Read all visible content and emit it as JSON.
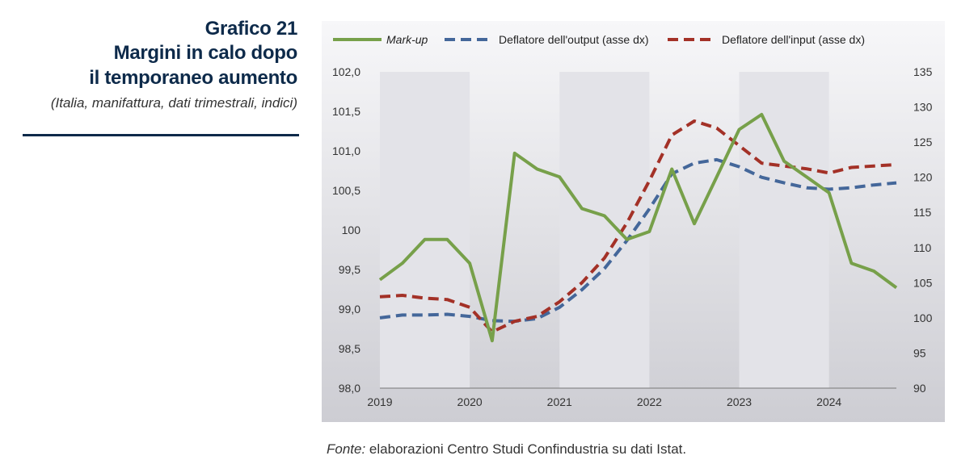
{
  "header": {
    "title_line1": "Grafico 21",
    "title_line2": "Margini in calo dopo",
    "title_line3": "il temporaneo aumento",
    "subtitle": "(Italia, manifattura, dati trimestrali, indici)"
  },
  "source": {
    "prefix": "Fonte:",
    "text": " elaborazioni Centro Studi Confindustria su dati Istat."
  },
  "colors": {
    "markup": "#77a04a",
    "output": "#44679a",
    "input": "#a33127",
    "shade": "#e3e3e8",
    "background_top": "#f7f7f9",
    "background_bottom": "#cdcdd3"
  },
  "chart_data": {
    "type": "line",
    "x_ticks": [
      "2019",
      "2020",
      "2021",
      "2022",
      "2023",
      "2024"
    ],
    "xlim": [
      2019,
      2024.75
    ],
    "shaded_years": [
      "2019",
      "2021",
      "2023"
    ],
    "y_left": {
      "ylim": [
        98.0,
        102.0
      ],
      "ticks": [
        "98,0",
        "98,5",
        "99,0",
        "99,5",
        "100",
        "100,5",
        "101,0",
        "101,5",
        "102,0"
      ],
      "tick_values": [
        98.0,
        98.5,
        99.0,
        99.5,
        100.0,
        100.5,
        101.0,
        101.5,
        102.0
      ]
    },
    "y_right": {
      "ylim": [
        90,
        135
      ],
      "ticks": [
        "90",
        "95",
        "100",
        "105",
        "110",
        "115",
        "120",
        "125",
        "130",
        "135"
      ],
      "tick_values": [
        90,
        95,
        100,
        105,
        110,
        115,
        120,
        125,
        130,
        135
      ]
    },
    "legend_position": "top",
    "series": [
      {
        "name": "Mark-up",
        "axis": "left",
        "style": "solid",
        "x": [
          2019.0,
          2019.25,
          2019.5,
          2019.75,
          2020.0,
          2020.25,
          2020.5,
          2020.75,
          2021.0,
          2021.25,
          2021.5,
          2021.75,
          2022.0,
          2022.25,
          2022.5,
          2022.75,
          2023.0,
          2023.25,
          2023.5,
          2023.75,
          2024.0,
          2024.25,
          2024.5,
          2024.75
        ],
        "values": [
          99.37,
          99.58,
          99.88,
          99.88,
          99.58,
          98.6,
          100.97,
          100.77,
          100.67,
          100.27,
          100.18,
          99.88,
          99.98,
          100.77,
          100.08,
          100.67,
          101.27,
          101.46,
          100.87,
          100.67,
          100.47,
          99.58,
          99.48,
          99.27
        ]
      },
      {
        "name": "Deflatore dell'output (asse dx)",
        "axis": "right",
        "style": "dashed",
        "x": [
          2019.0,
          2019.25,
          2019.5,
          2019.75,
          2020.0,
          2020.25,
          2020.5,
          2020.75,
          2021.0,
          2021.25,
          2021.5,
          2021.75,
          2022.0,
          2022.25,
          2022.5,
          2022.75,
          2023.0,
          2023.25,
          2023.5,
          2023.75,
          2024.0,
          2024.25,
          2024.5,
          2024.75
        ],
        "values": [
          100.0,
          100.4,
          100.4,
          100.5,
          100.2,
          99.6,
          99.5,
          99.9,
          101.5,
          104.0,
          107.0,
          111.0,
          115.5,
          120.5,
          122.0,
          122.5,
          121.5,
          120.0,
          119.2,
          118.5,
          118.3,
          118.5,
          118.9,
          119.2
        ]
      },
      {
        "name": "Deflatore dell'input (asse dx)",
        "axis": "right",
        "style": "dashed",
        "x": [
          2019.0,
          2019.25,
          2019.5,
          2019.75,
          2020.0,
          2020.25,
          2020.5,
          2020.75,
          2021.0,
          2021.25,
          2021.5,
          2021.75,
          2022.0,
          2022.25,
          2022.5,
          2022.75,
          2023.0,
          2023.25,
          2023.5,
          2023.75,
          2024.0,
          2024.25,
          2024.5,
          2024.75
        ],
        "values": [
          103.0,
          103.2,
          102.8,
          102.6,
          101.5,
          98.0,
          99.5,
          100.2,
          102.3,
          105.0,
          108.5,
          113.5,
          119.5,
          126.0,
          128.0,
          127.0,
          124.5,
          122.0,
          121.6,
          121.2,
          120.6,
          121.4,
          121.6,
          121.8
        ]
      }
    ]
  }
}
